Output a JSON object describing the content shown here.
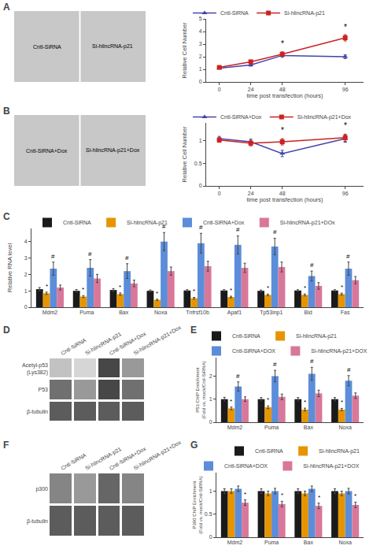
{
  "chart_data": [
    {
      "type": "image",
      "title": "A",
      "color": "#c8c8c8",
      "annotations": [
        "Cntl-SiRNA",
        "Si-hlincRNA-p21"
      ]
    },
    {
      "type": "line",
      "xlabel": "time post transfection (hours)",
      "ylabel": "Relative Cell Number",
      "x": [
        0,
        24,
        48,
        96
      ],
      "xlim": [
        -10,
        110
      ],
      "xticks": [
        0,
        24,
        48,
        96
      ],
      "ylim": [
        0,
        5
      ],
      "yticks": [
        0,
        1,
        2,
        3,
        4,
        5
      ],
      "grid": false,
      "legend": "top-left",
      "series": [
        {
          "name": "Cntl-SiRNA",
          "color": "#4444aa",
          "marker": "triangle-up",
          "values": [
            1.1,
            1.35,
            2.1,
            2.0
          ],
          "errors": [
            0.05,
            0.1,
            0.15,
            0.15
          ]
        },
        {
          "name": "Si-hlincRNA-p21",
          "color": "#cc2222",
          "marker": "square",
          "values": [
            1.15,
            1.6,
            2.2,
            3.5
          ],
          "errors": [
            0.06,
            0.12,
            0.18,
            0.25
          ]
        }
      ],
      "annotations": [
        {
          "text": "*",
          "x": 96,
          "y": 3.5
        },
        {
          "text": "*",
          "x": 48,
          "y": 2.2
        }
      ]
    },
    {
      "type": "image",
      "title": "B",
      "color": "#c8c8c8",
      "annotations": [
        "Cntl-SiRNA+Dox",
        "Si-hlincRNA-p21+Dox"
      ]
    },
    {
      "type": "line",
      "xlabel": "time post transfection (hours)",
      "ylabel": "Relative Cell Number",
      "x": [
        0,
        24,
        48,
        96
      ],
      "xlim": [
        -10,
        110
      ],
      "xticks": [
        0,
        24,
        48,
        96
      ],
      "ylim": [
        0,
        1.4
      ],
      "yticks": [
        0,
        0.5,
        1
      ],
      "grid": false,
      "legend": "top-left",
      "series": [
        {
          "name": "Cntl-SiRNA+Dox",
          "color": "#4444aa",
          "marker": "triangle-up",
          "values": [
            1.05,
            0.98,
            0.72,
            1.05
          ],
          "errors": [
            0.05,
            0.06,
            0.07,
            0.08
          ]
        },
        {
          "name": "Si-hlincRNA-p21+Dox",
          "color": "#cc2222",
          "marker": "square",
          "values": [
            1.02,
            0.95,
            0.98,
            1.07
          ],
          "errors": [
            0.05,
            0.06,
            0.07,
            0.08
          ]
        }
      ],
      "annotations": [
        {
          "text": "*",
          "x": 96,
          "y": 1.1
        },
        {
          "text": "*",
          "x": 48,
          "y": 1.0
        }
      ]
    },
    {
      "type": "bar",
      "title": "C",
      "ylabel": "Relative RNA level",
      "categories": [
        "Mdm2",
        "Puma",
        "Bax",
        "Noxa",
        "Tnfrsf10b",
        "Apaf1",
        "Tp53inp1",
        "Bid",
        "Fas"
      ],
      "ylim": [
        0,
        4.8
      ],
      "yticks": [
        0,
        1,
        2,
        3,
        4
      ],
      "grid": false,
      "legend": "top-left",
      "series": [
        {
          "name": "Cntl-SiRNA",
          "color": "#1a1a1a",
          "values": [
            1.1,
            1.0,
            1.05,
            1.0,
            1.02,
            1.02,
            1.0,
            1.02,
            1.02
          ],
          "errors": [
            0.1,
            0.08,
            0.08,
            0.05,
            0.05,
            0.05,
            0.05,
            0.05,
            0.05
          ]
        },
        {
          "name": "Si-hlincRNA-p21",
          "color": "#e69500",
          "values": [
            0.85,
            0.65,
            0.8,
            0.45,
            0.55,
            0.62,
            0.75,
            0.75,
            0.8
          ],
          "errors": [
            0.07,
            0.06,
            0.07,
            0.04,
            0.05,
            0.05,
            0.05,
            0.06,
            0.06
          ]
        },
        {
          "name": "Cntl-SiRNA+Dox",
          "color": "#5b8dd9",
          "values": [
            2.35,
            2.4,
            2.2,
            4.0,
            3.9,
            3.8,
            3.7,
            1.9,
            2.35
          ],
          "errors": [
            0.4,
            0.5,
            0.45,
            0.55,
            0.6,
            0.55,
            0.5,
            0.3,
            0.4
          ]
        },
        {
          "name": "Si-hlincRNA-p21+DOx",
          "color": "#d9779a",
          "values": [
            1.2,
            1.75,
            1.45,
            2.2,
            2.5,
            2.4,
            2.45,
            1.3,
            1.65
          ],
          "errors": [
            0.15,
            0.25,
            0.2,
            0.25,
            0.3,
            0.28,
            0.3,
            0.2,
            0.22
          ]
        }
      ],
      "annotations": [
        {
          "text": "#",
          "series": "Cntl-SiRNA+Dox"
        },
        {
          "text": "*",
          "series": "Si-hlincRNA-p21"
        }
      ]
    },
    {
      "type": "heatmap",
      "title": "D",
      "x": [
        "Cntl-SiRNA",
        "Si-hlincRNA-p21",
        "Cntl-SiRNA+Dox",
        "Si-hlincRNA-p21+Dox"
      ],
      "y": [
        "Acetyl-p53\n(Lys382)",
        "P53",
        "β-tubulin"
      ],
      "cells": [
        [
          0.3,
          0.2,
          0.9,
          0.5
        ],
        [
          0.7,
          0.5,
          0.9,
          0.7
        ],
        [
          0.8,
          0.8,
          0.8,
          0.8
        ]
      ],
      "zlim": [
        0,
        1
      ],
      "color": "#333333"
    },
    {
      "type": "bar",
      "title": "E",
      "ylabel": "P53 ChIP Enrichment\n(Fold vs. mock/Cntl-SiRNA)",
      "categories": [
        "Mdm2",
        "Puma",
        "Bax",
        "Noxa"
      ],
      "ylim": [
        0,
        2.8
      ],
      "yticks": [
        0,
        1,
        2
      ],
      "grid": false,
      "legend": "top-left",
      "series": [
        {
          "name": "Cntl-SiRNA",
          "color": "#1a1a1a",
          "values": [
            1.0,
            1.0,
            1.0,
            1.0
          ],
          "errors": [
            0.08,
            0.07,
            0.07,
            0.07
          ]
        },
        {
          "name": "Si-hlincRNA-p21",
          "color": "#e69500",
          "values": [
            0.6,
            0.65,
            0.55,
            0.55
          ],
          "errors": [
            0.06,
            0.06,
            0.06,
            0.05
          ]
        },
        {
          "name": "Cntl-SiRNA+DOX",
          "color": "#5b8dd9",
          "values": [
            1.55,
            2.0,
            2.1,
            1.8
          ],
          "errors": [
            0.2,
            0.25,
            0.28,
            0.22
          ]
        },
        {
          "name": "Si-hlincRNA-p21+DOX",
          "color": "#d9779a",
          "values": [
            1.0,
            1.1,
            1.25,
            1.15
          ],
          "errors": [
            0.1,
            0.12,
            0.14,
            0.12
          ]
        }
      ],
      "annotations": [
        {
          "text": "#",
          "series": "Cntl-SiRNA+DOX"
        },
        {
          "text": "*",
          "series": "Si-hlincRNA-p21"
        }
      ]
    },
    {
      "type": "heatmap",
      "title": "F",
      "x": [
        "Cntl-SiRNA",
        "Si-hlincRNA-p21",
        "Cntl-SiRNA+Dox",
        "Si-hlincRNA-p21+Dox"
      ],
      "y": [
        "p300",
        "β-tubulin"
      ],
      "cells": [
        [
          0.6,
          0.5,
          0.75,
          0.6
        ],
        [
          0.8,
          0.8,
          0.8,
          0.8
        ]
      ],
      "zlim": [
        0,
        1
      ],
      "color": "#333333"
    },
    {
      "type": "bar",
      "title": "G",
      "ylabel": "P300 ChIP Enrichment\n(Fold vs. mock/Cntl-SiRNA)",
      "categories": [
        "Mdm2",
        "Puma",
        "Bax",
        "Noxa"
      ],
      "ylim": [
        0,
        1.4
      ],
      "yticks": [
        0,
        0.5,
        1
      ],
      "grid": false,
      "legend": "top-right",
      "series": [
        {
          "name": "Cntl-SiRNA",
          "color": "#1a1a1a",
          "values": [
            1.0,
            1.0,
            1.0,
            1.0
          ],
          "errors": [
            0.05,
            0.05,
            0.05,
            0.05
          ]
        },
        {
          "name": "Si-hlincRNA-p21",
          "color": "#e69500",
          "values": [
            1.0,
            0.95,
            0.95,
            0.95
          ],
          "errors": [
            0.05,
            0.05,
            0.05,
            0.05
          ]
        },
        {
          "name": "Cntl-SiRNA+DOX",
          "color": "#5b8dd9",
          "values": [
            1.05,
            1.0,
            1.05,
            1.0
          ],
          "errors": [
            0.06,
            0.06,
            0.06,
            0.06
          ]
        },
        {
          "name": "Si-hlincRNA-p21+DOX",
          "color": "#d9779a",
          "values": [
            0.75,
            0.72,
            0.68,
            0.7
          ],
          "errors": [
            0.06,
            0.06,
            0.06,
            0.06
          ]
        }
      ],
      "annotations": [
        {
          "text": "*",
          "series": "Si-hlincRNA-p21+DOX"
        }
      ]
    }
  ]
}
